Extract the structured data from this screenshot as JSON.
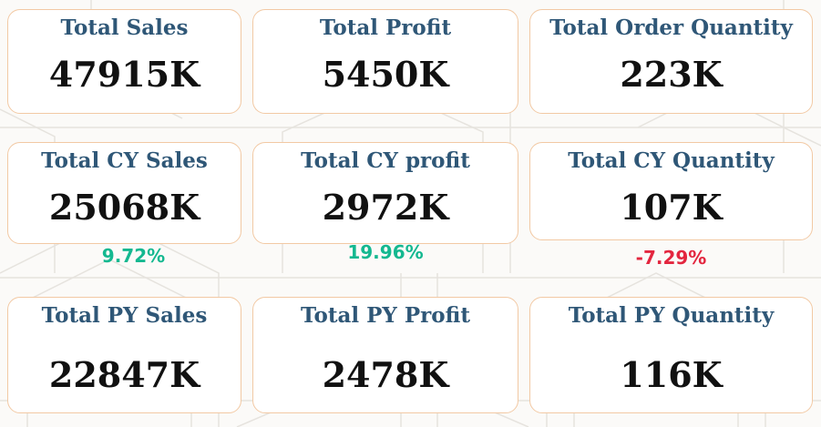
{
  "kpis": [
    {
      "title": "Total Sales",
      "value": "47915K"
    },
    {
      "title": "Total Profit",
      "value": "5450K"
    },
    {
      "title": "Total Order Quantity",
      "value": "223K"
    },
    {
      "title": "Total CY Sales",
      "value": "25068K",
      "change": "9.72%"
    },
    {
      "title": "Total CY profit",
      "value": "2972K",
      "change": "19.96%"
    },
    {
      "title": "Total CY Quantity",
      "value": "107K",
      "change": "-7.29%"
    },
    {
      "title": "Total PY Sales",
      "value": "22847K"
    },
    {
      "title": "Total PY Profit",
      "value": "2478K"
    },
    {
      "title": "Total PY Quantity",
      "value": "116K"
    }
  ],
  "colors": {
    "title": "#2f5777",
    "value": "#111111",
    "card_border": "#f2c9a4",
    "positive": "#14b890",
    "negative": "#e3263f"
  }
}
